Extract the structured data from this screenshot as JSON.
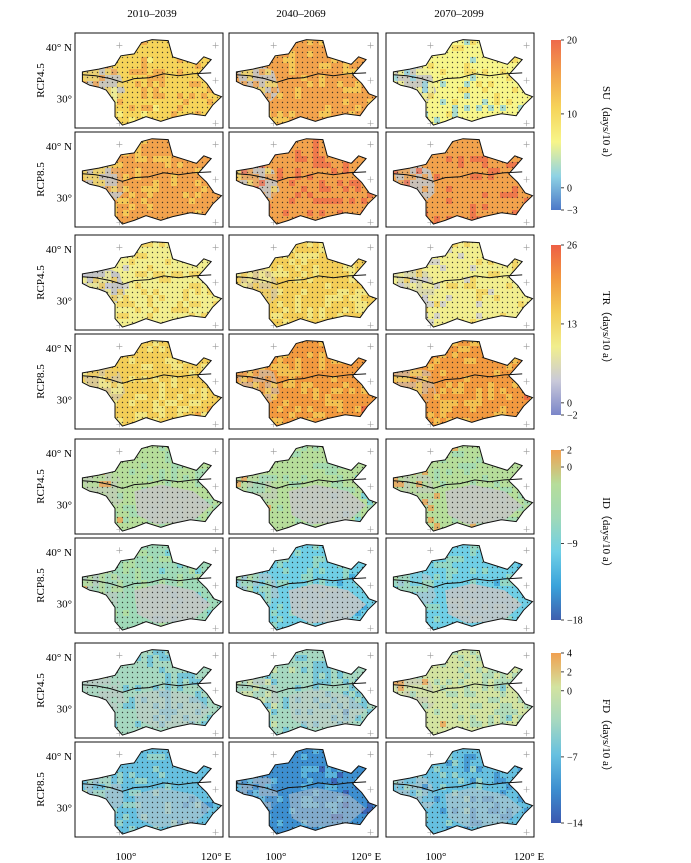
{
  "periods": [
    "2010–2039",
    "2040–2069",
    "2070–2099"
  ],
  "scenarios": [
    "RCP4.5",
    "RCP8.5"
  ],
  "lat_ticks": [
    "40° N",
    "30°"
  ],
  "lon_ticks": [
    "100°",
    "120° E"
  ],
  "chart_data": [
    {
      "type": "heatmap",
      "index": "SU",
      "label": "SU（days/10 a）",
      "colorbar_ticks": [
        "20",
        "10",
        "0",
        "−3"
      ],
      "range": [
        -3,
        20
      ],
      "colors": [
        "#4c78c8",
        "#8fd3e4",
        "#f7f58a",
        "#f6d45a",
        "#f2a24c",
        "#ee6a4b"
      ],
      "panels": {
        "RCP4.5": {
          "2010–2039": "increase (mostly yellow-orange), stippled",
          "2040–2069": "increase (orange), stippled",
          "2070–2099": "mixed (yellow/light blue)"
        },
        "RCP8.5": {
          "2010–2039": "increase (orange), stippled",
          "2040–2069": "strong increase (orange-red)",
          "2070–2099": "strong increase (orange-red)"
        }
      }
    },
    {
      "type": "heatmap",
      "index": "TR",
      "label": "TR（days/10 a）",
      "colorbar_ticks": [
        "26",
        "13",
        "0",
        "−2"
      ],
      "range": [
        -2,
        26
      ],
      "colors": [
        "#7b86c9",
        "#c9c9d9",
        "#f1ee8e",
        "#f3cd57",
        "#f2993f",
        "#ee5f45"
      ],
      "panels": {
        "RCP4.5": {
          "2010–2039": "slight increase (yellow)",
          "2040–2069": "slight increase (yellow)",
          "2070–2099": "slight increase (pale yellow)"
        },
        "RCP8.5": {
          "2010–2039": "increase (yellow)",
          "2040–2069": "increase (orange)",
          "2070–2099": "increase (orange)"
        }
      }
    },
    {
      "type": "heatmap",
      "index": "ID",
      "label": "ID（days/10 a）",
      "colorbar_ticks": [
        "2",
        "0",
        "−9",
        "−18"
      ],
      "range": [
        -18,
        2
      ],
      "colors": [
        "#3f5fae",
        "#3aa3db",
        "#6fcfe6",
        "#9fd9b8",
        "#b6dd9a",
        "#f0a050"
      ],
      "panels": {
        "RCP4.5": {
          "2010–2039": "slight decrease (green/grey)",
          "2040–2069": "slight decrease (green/grey)",
          "2070–2099": "near zero (grey/green)"
        },
        "RCP8.5": {
          "2010–2039": "decrease (green)",
          "2040–2069": "decrease (blue in west)",
          "2070–2099": "decrease (blue in west)"
        }
      }
    },
    {
      "type": "heatmap",
      "index": "FD",
      "label": "FD（days/10 a）",
      "colorbar_ticks": [
        "4",
        "2",
        "0",
        "−7",
        "−14"
      ],
      "range": [
        -14,
        4
      ],
      "colors": [
        "#3b58b0",
        "#3d8fd0",
        "#66c0e0",
        "#a6d8c0",
        "#d3e3a0",
        "#f0a050"
      ],
      "panels": {
        "RCP4.5": {
          "2010–2039": "decrease (teal)",
          "2040–2069": "decrease (teal)",
          "2070–2099": "mixed (pale green/yellow)"
        },
        "RCP8.5": {
          "2010–2039": "decrease (blue)",
          "2040–2069": "strong decrease (dark blue)",
          "2070–2099": "decrease (blue)"
        }
      }
    }
  ]
}
